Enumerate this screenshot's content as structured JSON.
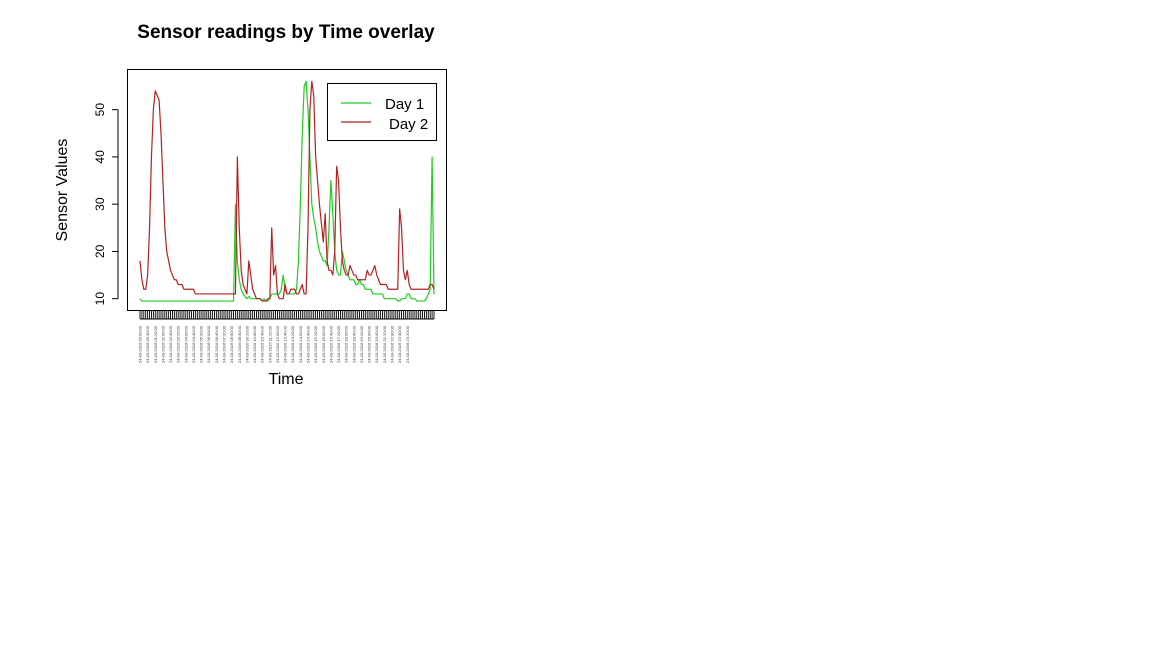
{
  "chart_data": {
    "type": "line",
    "title": "Sensor readings by Time overlay",
    "xlabel": "Time",
    "ylabel": "Sensor Values",
    "yticks": [
      10,
      20,
      30,
      40,
      50
    ],
    "ylim": [
      7.5,
      58.5
    ],
    "grid": false,
    "legend": "top-right",
    "x_step_minutes": 10,
    "x_label_every": 4,
    "x_tick_labels": [
      "24-03-2016 00:00:00",
      "24-03-2016 00:40:00",
      "24-03-2016 01:20:00",
      "24-03-2016 02:00:00",
      "24-03-2016 02:40:00",
      "24-03-2016 03:20:00",
      "24-03-2016 04:00:00",
      "24-03-2016 04:40:00",
      "24-03-2016 05:20:00",
      "24-03-2016 06:00:00",
      "24-03-2016 06:40:00",
      "24-03-2016 07:20:00",
      "24-03-2016 08:00:00",
      "24-03-2016 08:40:00",
      "24-03-2016 09:20:00",
      "24-03-2016 10:00:00",
      "24-03-2016 10:40:00",
      "24-03-2016 11:20:00",
      "24-03-2016 12:00:00",
      "24-03-2016 12:40:00",
      "24-03-2016 13:20:00",
      "24-03-2016 14:00:00",
      "24-03-2016 14:40:00",
      "24-03-2016 15:20:00",
      "24-03-2016 16:00:00",
      "24-03-2016 16:40:00",
      "24-03-2016 17:20:00",
      "24-03-2016 18:00:00",
      "24-03-2016 18:40:00",
      "24-03-2016 19:20:00",
      "24-03-2016 20:00:00",
      "24-03-2016 20:40:00",
      "24-03-2016 21:20:00",
      "24-03-2016 22:00:00",
      "24-03-2016 22:40:00",
      "24-03-2016 23:20:00"
    ],
    "series": [
      {
        "name": "Day 1",
        "color": "#22cc22",
        "values": [
          10,
          9.5,
          9.5,
          9.5,
          9.5,
          9.5,
          9.5,
          9.5,
          9.5,
          9.5,
          9.5,
          9.5,
          9.5,
          9.5,
          9.5,
          9.5,
          9.5,
          9.5,
          9.5,
          9.5,
          9.5,
          9.5,
          9.5,
          9.5,
          9.5,
          9.5,
          9.5,
          9.5,
          9.5,
          9.5,
          9.5,
          9.5,
          9.5,
          9.5,
          9.5,
          9.5,
          9.5,
          9.5,
          9.5,
          9.5,
          9.5,
          9.5,
          9.5,
          9.5,
          9.5,
          9.5,
          9.5,
          9.5,
          9.5,
          9.5,
          30,
          18,
          14,
          12,
          11,
          10.5,
          10,
          10.5,
          10,
          10,
          10,
          10,
          10,
          10,
          9.5,
          10,
          9.5,
          9.5,
          10,
          11,
          11,
          11,
          11,
          11,
          12,
          15,
          12,
          11,
          11,
          11,
          11,
          11,
          12,
          18,
          30,
          45,
          55,
          56,
          50,
          40,
          30,
          27,
          25,
          22,
          20,
          19,
          18,
          18,
          17,
          25,
          35,
          28,
          20,
          16,
          15,
          15,
          20,
          18,
          16,
          15,
          14,
          14,
          14,
          13,
          13,
          14,
          13,
          13,
          12,
          12,
          12,
          12,
          11,
          11,
          11,
          11,
          11,
          11,
          10,
          10,
          10,
          10,
          10,
          10,
          10,
          9.5,
          9.5,
          10,
          10,
          10,
          11,
          11,
          10,
          10,
          10,
          9.5,
          9.5,
          9.5,
          9.5,
          9.5,
          10,
          11,
          12,
          40,
          11
        ]
      },
      {
        "name": "Day 2",
        "color": "#b22222",
        "values": [
          18,
          14,
          12,
          12,
          15,
          25,
          40,
          50,
          54,
          53,
          52,
          45,
          35,
          25,
          20,
          18,
          16,
          15,
          14,
          14,
          13,
          13,
          13,
          12,
          12,
          12,
          12,
          12,
          12,
          11,
          11,
          11,
          11,
          11,
          11,
          11,
          11,
          11,
          11,
          11,
          11,
          11,
          11,
          11,
          11,
          11,
          11,
          11,
          11,
          11,
          11,
          40,
          25,
          16,
          13,
          12,
          11,
          18,
          15,
          12,
          11,
          10,
          10,
          10,
          9.5,
          9.5,
          9.5,
          10,
          10,
          25,
          15,
          17,
          11,
          10,
          10,
          10,
          13,
          11,
          11,
          12,
          12,
          12,
          11,
          11,
          12,
          13,
          11,
          11,
          25,
          50,
          56,
          53,
          40,
          35,
          30,
          26,
          22,
          28,
          18,
          16,
          16,
          15,
          20,
          38,
          35,
          25,
          18,
          16,
          15,
          15,
          17,
          16,
          15,
          15,
          14,
          14,
          14,
          14,
          14,
          16,
          15,
          15,
          16,
          17,
          15,
          14,
          13,
          13,
          13,
          13,
          12,
          12,
          12,
          12,
          12,
          12,
          29,
          25,
          16,
          14,
          16,
          13,
          12,
          12,
          12,
          12,
          12,
          12,
          12,
          12,
          12,
          12,
          13,
          13,
          12
        ]
      }
    ]
  }
}
